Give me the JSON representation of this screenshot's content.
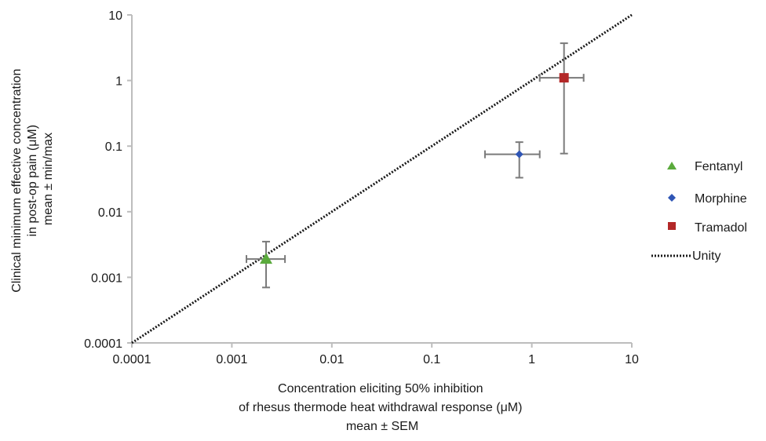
{
  "chart_data": {
    "type": "scatter",
    "x_scale": "log",
    "y_scale": "log",
    "xlim": [
      0.0001,
      10
    ],
    "ylim": [
      0.0001,
      10
    ],
    "x_ticks": [
      "0.0001",
      "0.001",
      "0.01",
      "0.1",
      "1",
      "10"
    ],
    "y_ticks": [
      "0.0001",
      "0.001",
      "0.01",
      "0.1",
      "1",
      "10"
    ],
    "xlabel_lines": [
      "Concentration eliciting 50% inhibition",
      "of rhesus thermode heat withdrawal response (μM)",
      "mean ± SEM"
    ],
    "ylabel_lines": [
      "Clinical minimum effective concentration",
      "in post-op pain (μM)",
      "mean ± min/max"
    ],
    "grid": false,
    "legend_position": "right",
    "series": [
      {
        "name": "Fentanyl",
        "marker": "triangle",
        "color": "#5aaa3c",
        "x": 0.0022,
        "y": 0.0019,
        "x_err": [
          0.0014,
          0.0034
        ],
        "y_err": [
          0.0007,
          0.0035
        ]
      },
      {
        "name": "Morphine",
        "marker": "diamond",
        "color": "#2f55b5",
        "x": 0.75,
        "y": 0.075,
        "x_err": [
          0.34,
          1.2
        ],
        "y_err": [
          0.033,
          0.115
        ]
      },
      {
        "name": "Tramadol",
        "marker": "square",
        "color": "#b32828",
        "x": 2.1,
        "y": 1.1,
        "x_err": [
          1.2,
          3.3
        ],
        "y_err": [
          0.077,
          3.7
        ]
      }
    ],
    "reference_line": {
      "name": "Unity",
      "style": "dotted",
      "color": "#1a1a1a",
      "from": [
        0.0001,
        0.0001
      ],
      "to": [
        10,
        10
      ]
    }
  }
}
